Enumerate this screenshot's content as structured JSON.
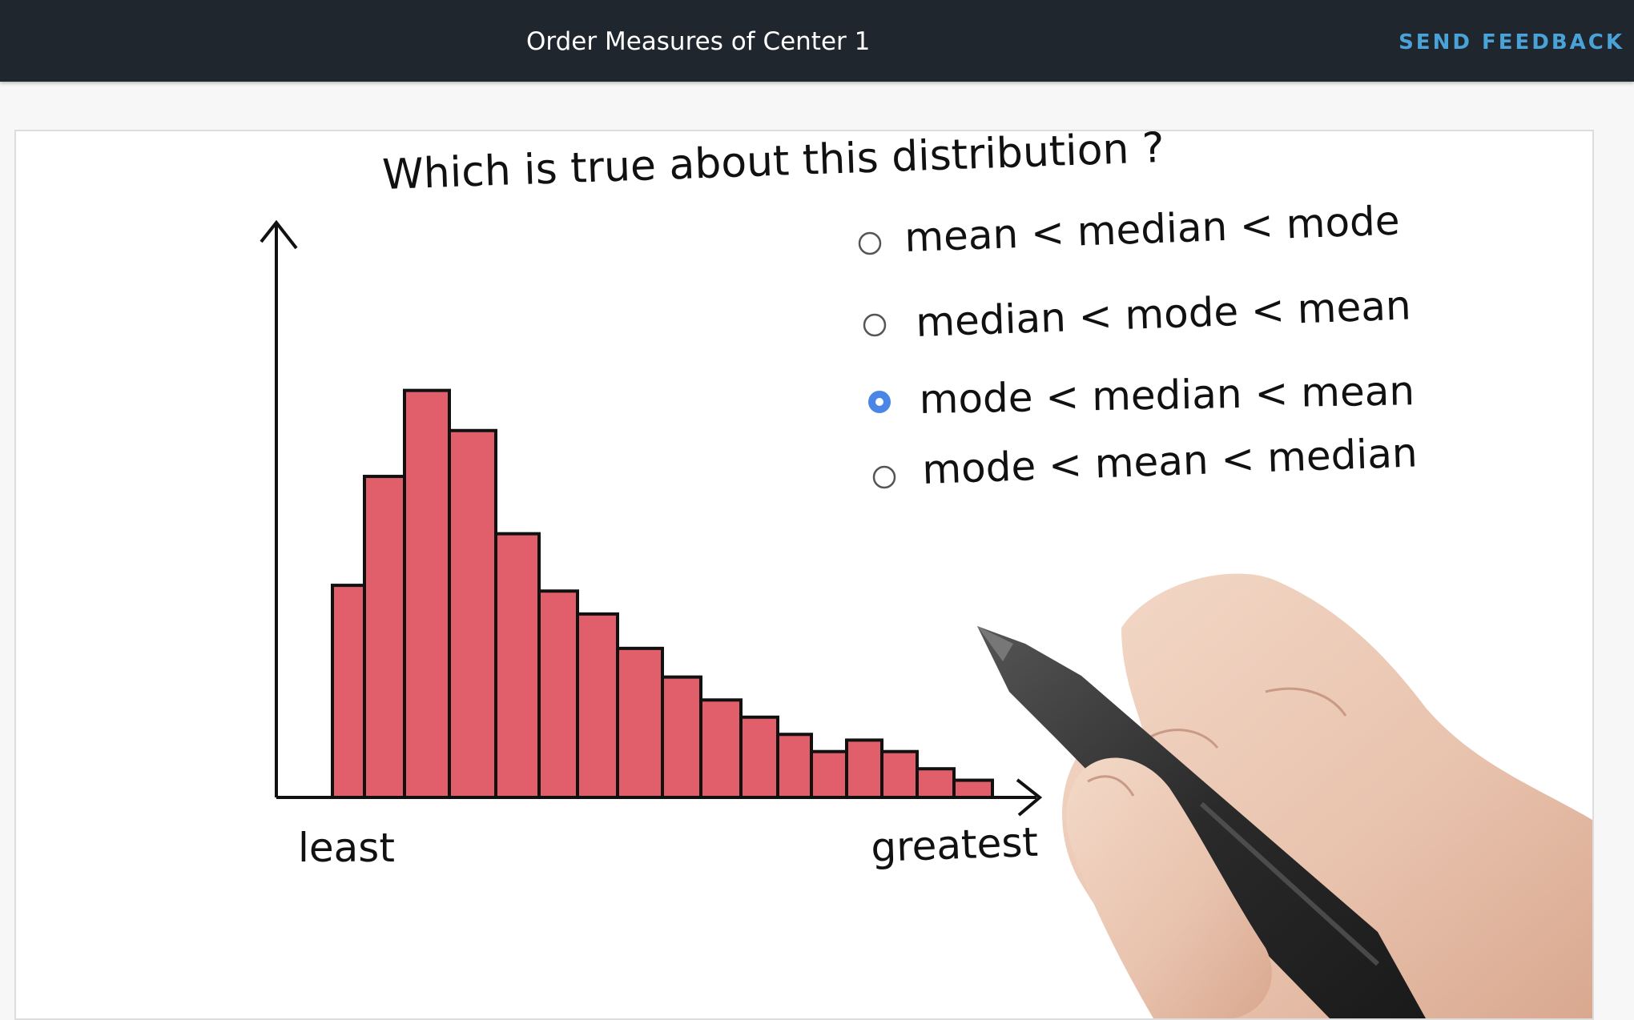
{
  "header": {
    "title": "Order Measures of Center 1",
    "feedback_label": "SEND FEEDBACK"
  },
  "quiz": {
    "question": "Which is true about this distribution ?",
    "options": [
      {
        "label": "mean < median < mode",
        "selected": false
      },
      {
        "label": "median < mode < mean",
        "selected": false
      },
      {
        "label": "mode < median < mean",
        "selected": true
      },
      {
        "label": "mode < mean < median",
        "selected": false
      }
    ]
  },
  "chart_data": {
    "type": "bar",
    "xlabel_left": "least",
    "xlabel_right": "greatest",
    "values": [
      37,
      56,
      71,
      64,
      46,
      36,
      32,
      26,
      21,
      17,
      14,
      11,
      8,
      10,
      8,
      5,
      3
    ],
    "ylim": [
      0,
      100
    ],
    "bar_color": "#e05f6a",
    "stroke_color": "#111111"
  },
  "colors": {
    "header_bg": "#1f262e",
    "feedback": "#4aa3d8",
    "radio_selected": "#4a86e8"
  }
}
